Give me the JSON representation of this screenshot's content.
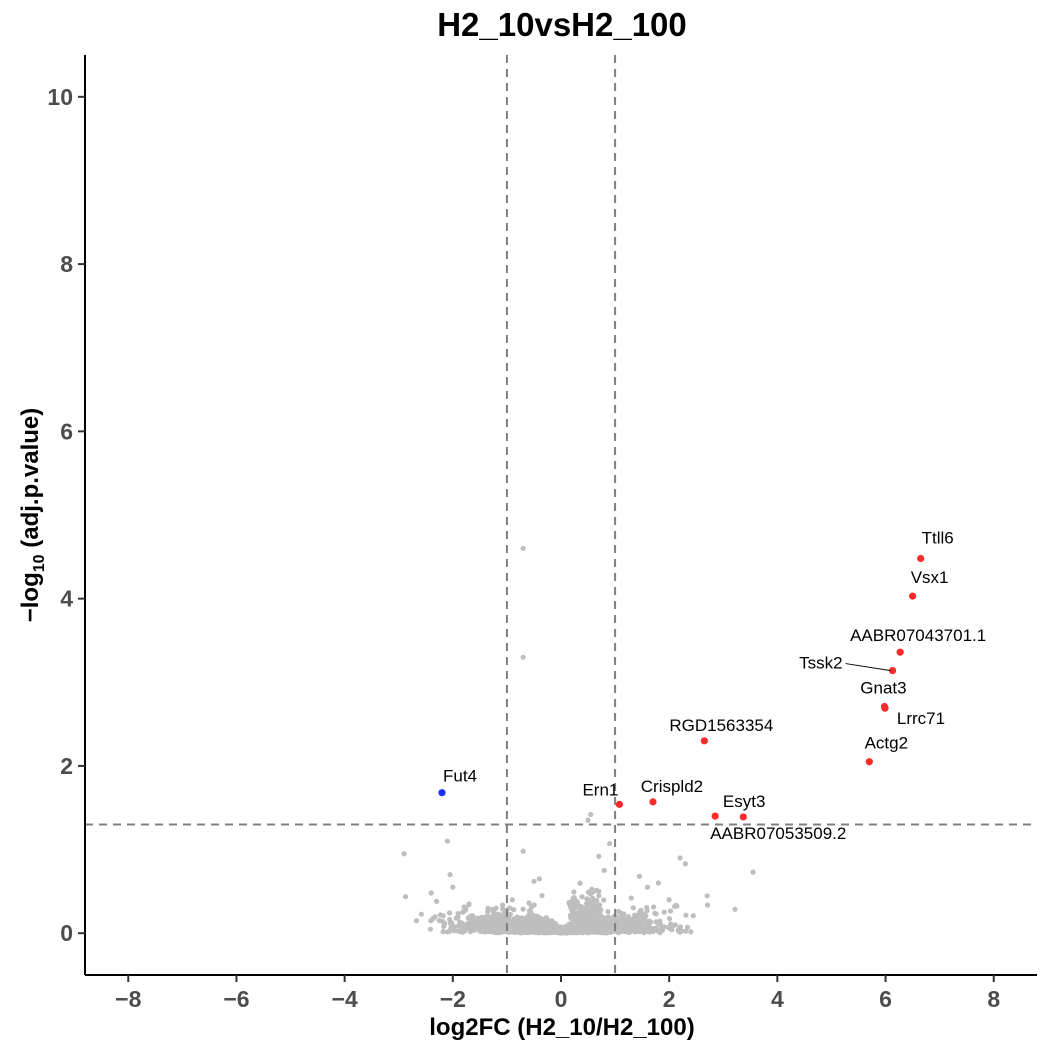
{
  "chart_data": {
    "type": "scatter",
    "title": "H2_10vsH2_100",
    "xlabel": "log2FC (H2_10/H2_100)",
    "ylabel_prefix": "−log",
    "ylabel_sub": "10",
    "ylabel_suffix": " (adj.p.value)",
    "xlim": [
      -8.8,
      8.8
    ],
    "ylim": [
      -0.5,
      10.5
    ],
    "x_ticks": [
      -8,
      -6,
      -4,
      -2,
      0,
      2,
      4,
      6,
      8
    ],
    "x_tick_labels": [
      "−8",
      "−6",
      "−4",
      "−2",
      "0",
      "2",
      "4",
      "6",
      "8"
    ],
    "y_ticks": [
      0,
      2,
      4,
      6,
      8,
      10
    ],
    "y_tick_labels": [
      "0",
      "2",
      "4",
      "6",
      "8",
      "10"
    ],
    "thresholds": {
      "log2fc": [
        -1,
        1
      ],
      "neg_log10_p": 1.3
    },
    "colors": {
      "up": "#ff2a2a",
      "down": "#1f2dff",
      "ns": "#bebebe",
      "threshold_line": "#7f7f7f"
    },
    "significant_points": [
      {
        "gene": "Ttll6",
        "x": 6.65,
        "y": 4.48,
        "status": "up"
      },
      {
        "gene": "Vsx1",
        "x": 6.5,
        "y": 4.03,
        "status": "up"
      },
      {
        "gene": "AABR07043701.1",
        "x": 6.27,
        "y": 3.36,
        "status": "up"
      },
      {
        "gene": "Tssk2",
        "x": 6.13,
        "y": 3.14,
        "status": "up"
      },
      {
        "gene": "Gnat3",
        "x": 5.98,
        "y": 2.71,
        "status": "up"
      },
      {
        "gene": "Lrrc71",
        "x": 5.99,
        "y": 2.69,
        "status": "up"
      },
      {
        "gene": "RGD1563354",
        "x": 2.65,
        "y": 2.3,
        "status": "up"
      },
      {
        "gene": "Actg2",
        "x": 5.7,
        "y": 2.05,
        "status": "up"
      },
      {
        "gene": "Crispld2",
        "x": 1.7,
        "y": 1.57,
        "status": "up"
      },
      {
        "gene": "Ern1",
        "x": 1.08,
        "y": 1.54,
        "status": "up"
      },
      {
        "gene": "Esyt3",
        "x": 2.85,
        "y": 1.4,
        "status": "up"
      },
      {
        "gene": "AABR07053509.2",
        "x": 3.37,
        "y": 1.39,
        "status": "up"
      },
      {
        "gene": "Fut4",
        "x": -2.2,
        "y": 1.68,
        "status": "down"
      }
    ],
    "nonsignificant_points": [
      [
        -0.7,
        4.6
      ],
      [
        -0.7,
        3.3
      ],
      [
        -2.9,
        0.95
      ],
      [
        -2.1,
        1.1
      ],
      [
        -2.05,
        0.7
      ],
      [
        -2.0,
        0.55
      ],
      [
        -0.7,
        0.98
      ],
      [
        -0.5,
        0.62
      ],
      [
        -0.4,
        0.65
      ],
      [
        0.55,
        1.42
      ],
      [
        0.5,
        1.35
      ],
      [
        0.9,
        1.07
      ],
      [
        0.7,
        0.92
      ],
      [
        1.45,
        0.68
      ],
      [
        1.6,
        0.55
      ],
      [
        1.8,
        0.6
      ],
      [
        2.2,
        0.9
      ],
      [
        2.3,
        0.83
      ],
      [
        3.55,
        0.73
      ],
      [
        -2.4,
        0.48
      ],
      [
        -2.3,
        0.38
      ],
      [
        -1.7,
        0.35
      ],
      [
        -1.2,
        0.3
      ],
      [
        2.0,
        0.4
      ],
      [
        2.1,
        0.32
      ],
      [
        0.8,
        0.75
      ],
      [
        0.6,
        0.5
      ],
      [
        1.3,
        0.42
      ],
      [
        -0.9,
        0.4
      ],
      [
        -0.35,
        0.45
      ]
    ]
  },
  "cloud_seed": 12345,
  "cloud_count": 2200,
  "dashed_lines": "dashed"
}
